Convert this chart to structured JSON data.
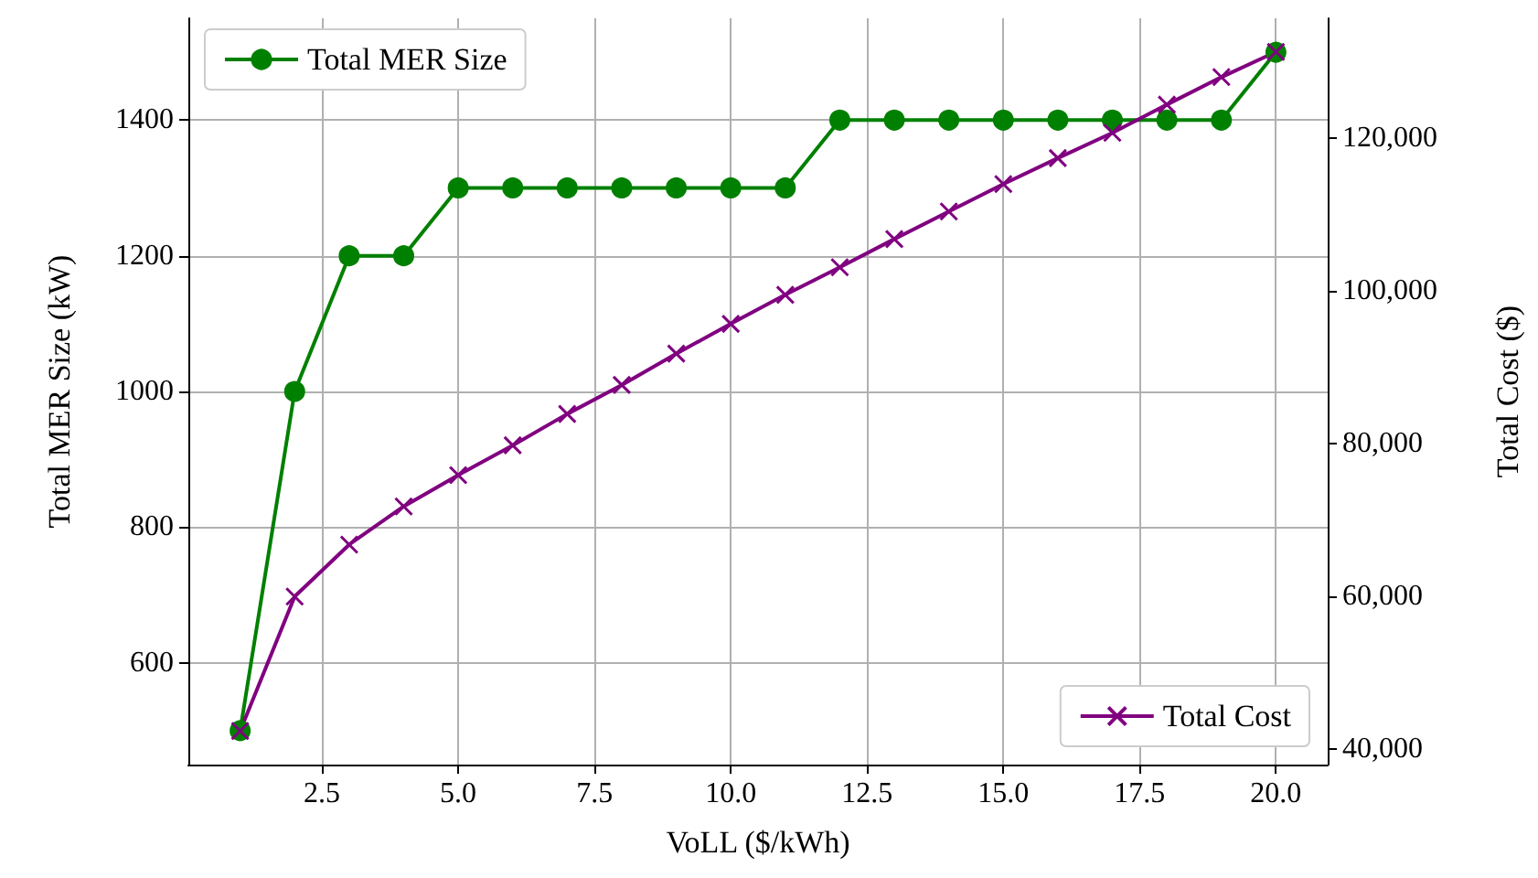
{
  "chart_data": {
    "type": "line",
    "xlabel": "VoLL ($/kWh)",
    "ylabel": "Total MER Size (kW)",
    "y2label": "Total Cost ($)",
    "x": [
      1,
      2,
      3,
      4,
      5,
      6,
      7,
      8,
      9,
      10,
      11,
      12,
      13,
      14,
      15,
      16,
      17,
      18,
      19,
      20
    ],
    "series": [
      {
        "name": "Total MER Size",
        "color": "#008000",
        "marker": "circle",
        "values": [
          500,
          1000,
          1200,
          1200,
          1300,
          1300,
          1300,
          1300,
          1300,
          1300,
          1300,
          1400,
          1400,
          1400,
          1400,
          1400,
          1400,
          1400,
          1400,
          1500
        ]
      },
      {
        "name": "Total Cost",
        "color": "#800080",
        "marker": "cross",
        "axis": "y2",
        "values": [
          42400,
          60000,
          66800,
          71800,
          75900,
          79800,
          83900,
          87700,
          91800,
          95700,
          99500,
          103100,
          106800,
          110400,
          114000,
          117400,
          120700,
          124400,
          128000,
          131300
        ]
      }
    ],
    "xlim": [
      0.05,
      20.95
    ],
    "xticks": [
      {
        "value": 2.5,
        "label": "2.5"
      },
      {
        "value": 5,
        "label": "5.0"
      },
      {
        "value": 7.5,
        "label": "7.5"
      },
      {
        "value": 10,
        "label": "10.0"
      },
      {
        "value": 12.5,
        "label": "12.5"
      },
      {
        "value": 15,
        "label": "15.0"
      },
      {
        "value": 17.5,
        "label": "17.5"
      },
      {
        "value": 20,
        "label": "20.0"
      }
    ],
    "ylim": [
      450,
      1550
    ],
    "yticks": [
      600,
      800,
      1000,
      1200,
      1400
    ],
    "y2lim": [
      38000,
      135700
    ],
    "y2ticks": [
      {
        "value": 40000,
        "label": "40,000"
      },
      {
        "value": 60000,
        "label": "60,000"
      },
      {
        "value": 80000,
        "label": "80,000"
      },
      {
        "value": 100000,
        "label": "100,000"
      },
      {
        "value": 120000,
        "label": "120,000"
      }
    ],
    "grid": true,
    "legend": "top left"
  }
}
